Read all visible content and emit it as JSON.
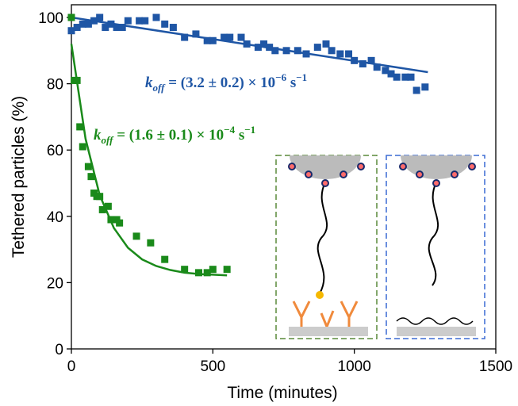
{
  "chart_data": {
    "type": "scatter",
    "x_label": "Time (minutes)",
    "y_label": "Tethered particles (%)",
    "xlim": [
      0,
      1500
    ],
    "xticks": [
      0,
      500,
      1000,
      1500
    ],
    "ylim": [
      0,
      100
    ],
    "yticks": [
      0,
      20,
      40,
      60,
      80,
      100
    ],
    "series": [
      {
        "color": "#1f56a5",
        "x": [
          0,
          20,
          40,
          60,
          80,
          100,
          120,
          140,
          160,
          180,
          200,
          240,
          260,
          300,
          330,
          360,
          400,
          440,
          480,
          500,
          540,
          560,
          600,
          620,
          660,
          680,
          700,
          720,
          760,
          800,
          830,
          870,
          900,
          920,
          950,
          980,
          1000,
          1030,
          1060,
          1080,
          1110,
          1130,
          1150,
          1180,
          1200,
          1220,
          1250
        ],
        "values": [
          96,
          97,
          98,
          98,
          99,
          100,
          97,
          98,
          97,
          97,
          99,
          99,
          99,
          100,
          98,
          97,
          94,
          95,
          93,
          93,
          94,
          94,
          94,
          92,
          91,
          92,
          91,
          90,
          90,
          90,
          89,
          91,
          92,
          90,
          89,
          89,
          87,
          86,
          87,
          85,
          84,
          83,
          82,
          82,
          82,
          78,
          79
        ]
      },
      {
        "color": "#1a8a1a",
        "x": [
          0,
          10,
          20,
          30,
          40,
          60,
          70,
          80,
          90,
          100,
          110,
          130,
          140,
          160,
          170,
          230,
          280,
          330,
          400,
          450,
          480,
          500,
          550
        ],
        "values": [
          100,
          81,
          81,
          67,
          61,
          55,
          52,
          47,
          46,
          46,
          42,
          43,
          39,
          39,
          38,
          34,
          32,
          27,
          24,
          23,
          23,
          24,
          24
        ]
      }
    ],
    "fit_lines": [
      {
        "color": "#1f56a5",
        "x": [
          0,
          1260
        ],
        "values": [
          100,
          83.5
        ]
      },
      {
        "color": "#1a8a1a",
        "x": [
          0,
          50,
          100,
          150,
          200,
          250,
          300,
          350,
          400,
          450,
          500,
          550
        ],
        "values": [
          92,
          63.4,
          46.4,
          36.5,
          30.5,
          27,
          25,
          23.8,
          23,
          22.6,
          22.4,
          22.2
        ]
      }
    ],
    "annotations": [
      {
        "color": "#1f56a5",
        "k": "k",
        "sub": "off",
        "main": " = (3.2 ± 0.2) × 10",
        "exp": "−6",
        "unit": " s",
        "unit_exp": "−1"
      },
      {
        "color": "#1a8a1a",
        "k": "k",
        "sub": "off",
        "main": " = (1.6 ± 0.1) × 10",
        "exp": "−4",
        "unit": " s",
        "unit_exp": "−1"
      }
    ]
  }
}
